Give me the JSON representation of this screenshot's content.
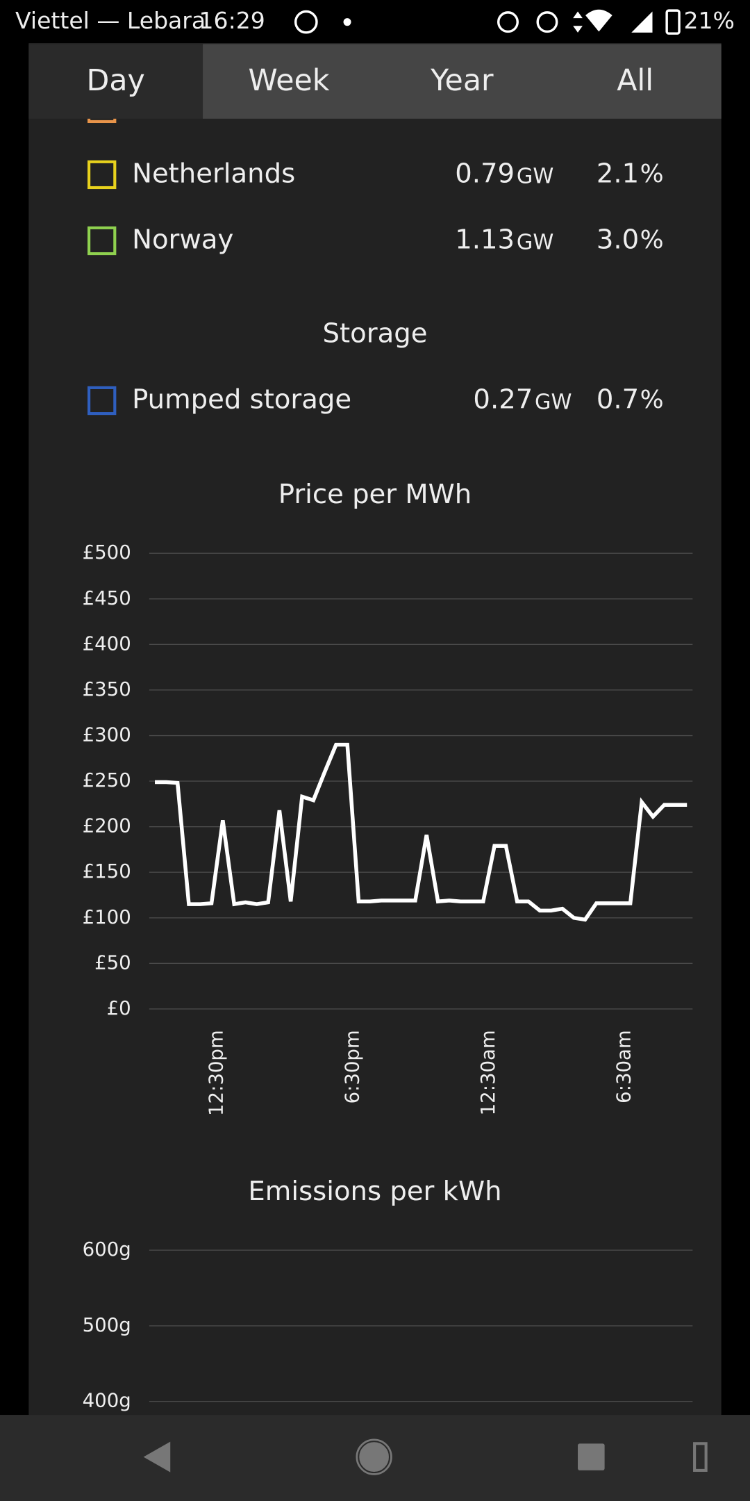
{
  "status_bar": {
    "carrier": "Viettel — Lebara",
    "time": "16:29",
    "battery": "21%"
  },
  "tabs": [
    "Day",
    "Week",
    "Year",
    "All"
  ],
  "interconnectors": [
    {
      "name": "Netherlands",
      "color": "#e8d21d",
      "power": "0.79",
      "unit": "GW",
      "share": "2.1",
      "share_unit": "%"
    },
    {
      "name": "Norway",
      "color": "#8fd14f",
      "power": "1.13",
      "unit": "GW",
      "share": "3.0",
      "share_unit": "%"
    }
  ],
  "storage": {
    "title": "Storage",
    "items": [
      {
        "name": "Pumped storage",
        "color": "#2f5fbf",
        "power": "0.27",
        "unit": "GW",
        "share": "0.7",
        "share_unit": "%"
      }
    ]
  },
  "chart_data": [
    {
      "type": "line",
      "title": "Price per MWh",
      "color": "#ffffff",
      "values": [
        249,
        249,
        248,
        115,
        115,
        116,
        207,
        115,
        117,
        115,
        117,
        218,
        118,
        233,
        229,
        260,
        290,
        290,
        118,
        118,
        119,
        119,
        119,
        119,
        191,
        118,
        119,
        118,
        118,
        118,
        179,
        179,
        118,
        118,
        108,
        108,
        110,
        100,
        98,
        116,
        116,
        116,
        116,
        227,
        211,
        224,
        224,
        224
      ],
      "xlim": [
        -0.5,
        47.5
      ],
      "xticks": [
        {
          "value": 5.5,
          "label": "12:30pm"
        },
        {
          "value": 17.5,
          "label": "6:30pm"
        },
        {
          "value": 29.5,
          "label": "12:30am"
        },
        {
          "value": 41.5,
          "label": "6:30am"
        }
      ],
      "ylim": [
        0,
        500
      ],
      "yticks": [
        {
          "value": 0,
          "label": "£0"
        },
        {
          "value": 50,
          "label": "£50"
        },
        {
          "value": 100,
          "label": "£100"
        },
        {
          "value": 150,
          "label": "£150"
        },
        {
          "value": 200,
          "label": "£200"
        },
        {
          "value": 250,
          "label": "£250"
        },
        {
          "value": 300,
          "label": "£300"
        },
        {
          "value": 350,
          "label": "£350"
        },
        {
          "value": 400,
          "label": "£400"
        },
        {
          "value": 450,
          "label": "£450"
        },
        {
          "value": 500,
          "label": "£500"
        }
      ],
      "grid": true
    },
    {
      "type": "line",
      "title": "Emissions per kWh",
      "ylim": [
        400,
        600
      ],
      "yticks": [
        {
          "value": 400,
          "label": "400g"
        },
        {
          "value": 500,
          "label": "500g"
        },
        {
          "value": 600,
          "label": "600g"
        }
      ],
      "grid": true
    }
  ]
}
